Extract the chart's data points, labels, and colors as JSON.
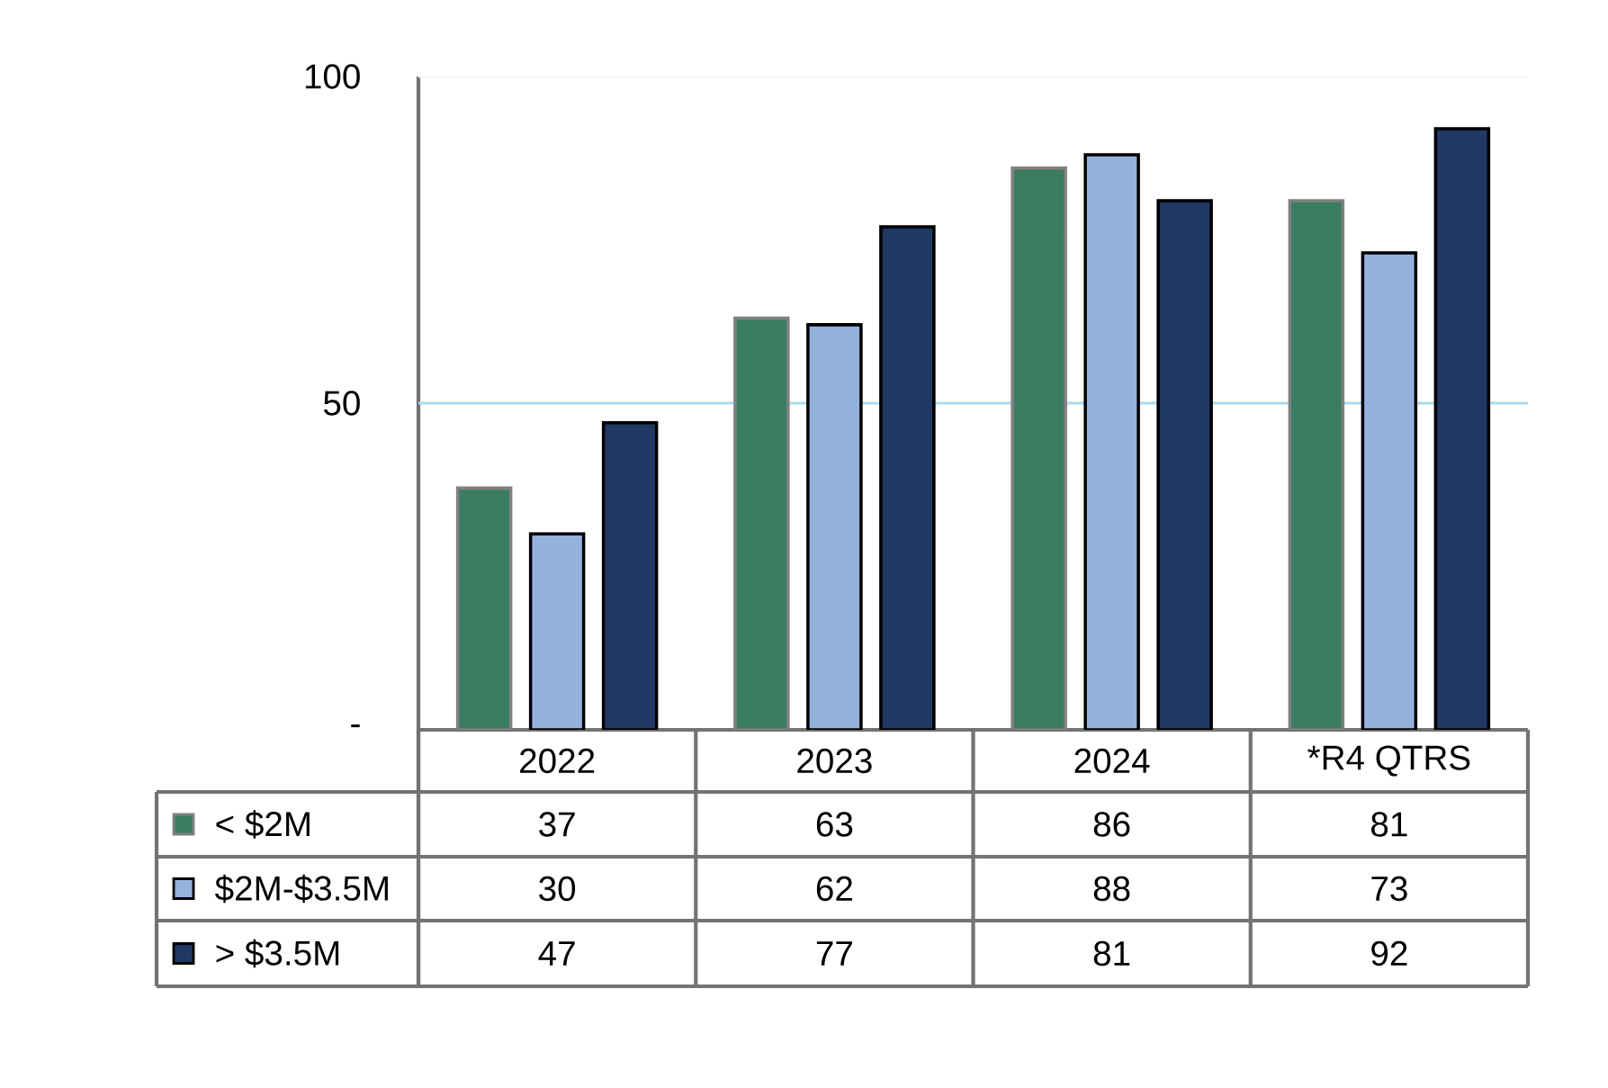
{
  "chart_data": {
    "type": "bar",
    "categories": [
      "2022",
      "2023",
      "2024",
      "*R4 QTRS"
    ],
    "series": [
      {
        "name": "< $2M",
        "color": "#3a7d62",
        "values": [
          37,
          63,
          86,
          81
        ]
      },
      {
        "name": "$2M-$3.5M",
        "color": "#95b1de",
        "values": [
          30,
          62,
          88,
          73
        ]
      },
      {
        "name": "> $3.5M",
        "color": "#1f3864",
        "values": [
          47,
          77,
          81,
          92
        ]
      }
    ],
    "ylim": [
      0,
      100
    ],
    "yticks": [
      {
        "value": 0,
        "label": "-"
      },
      50,
      100
    ],
    "ref_lines": [
      {
        "axis": "y",
        "value": 50,
        "color": "#a8dcf0"
      },
      {
        "axis": "y",
        "value": 100,
        "color": "#eaf5fb"
      }
    ],
    "legend": "bottom",
    "data_labels": true
  }
}
